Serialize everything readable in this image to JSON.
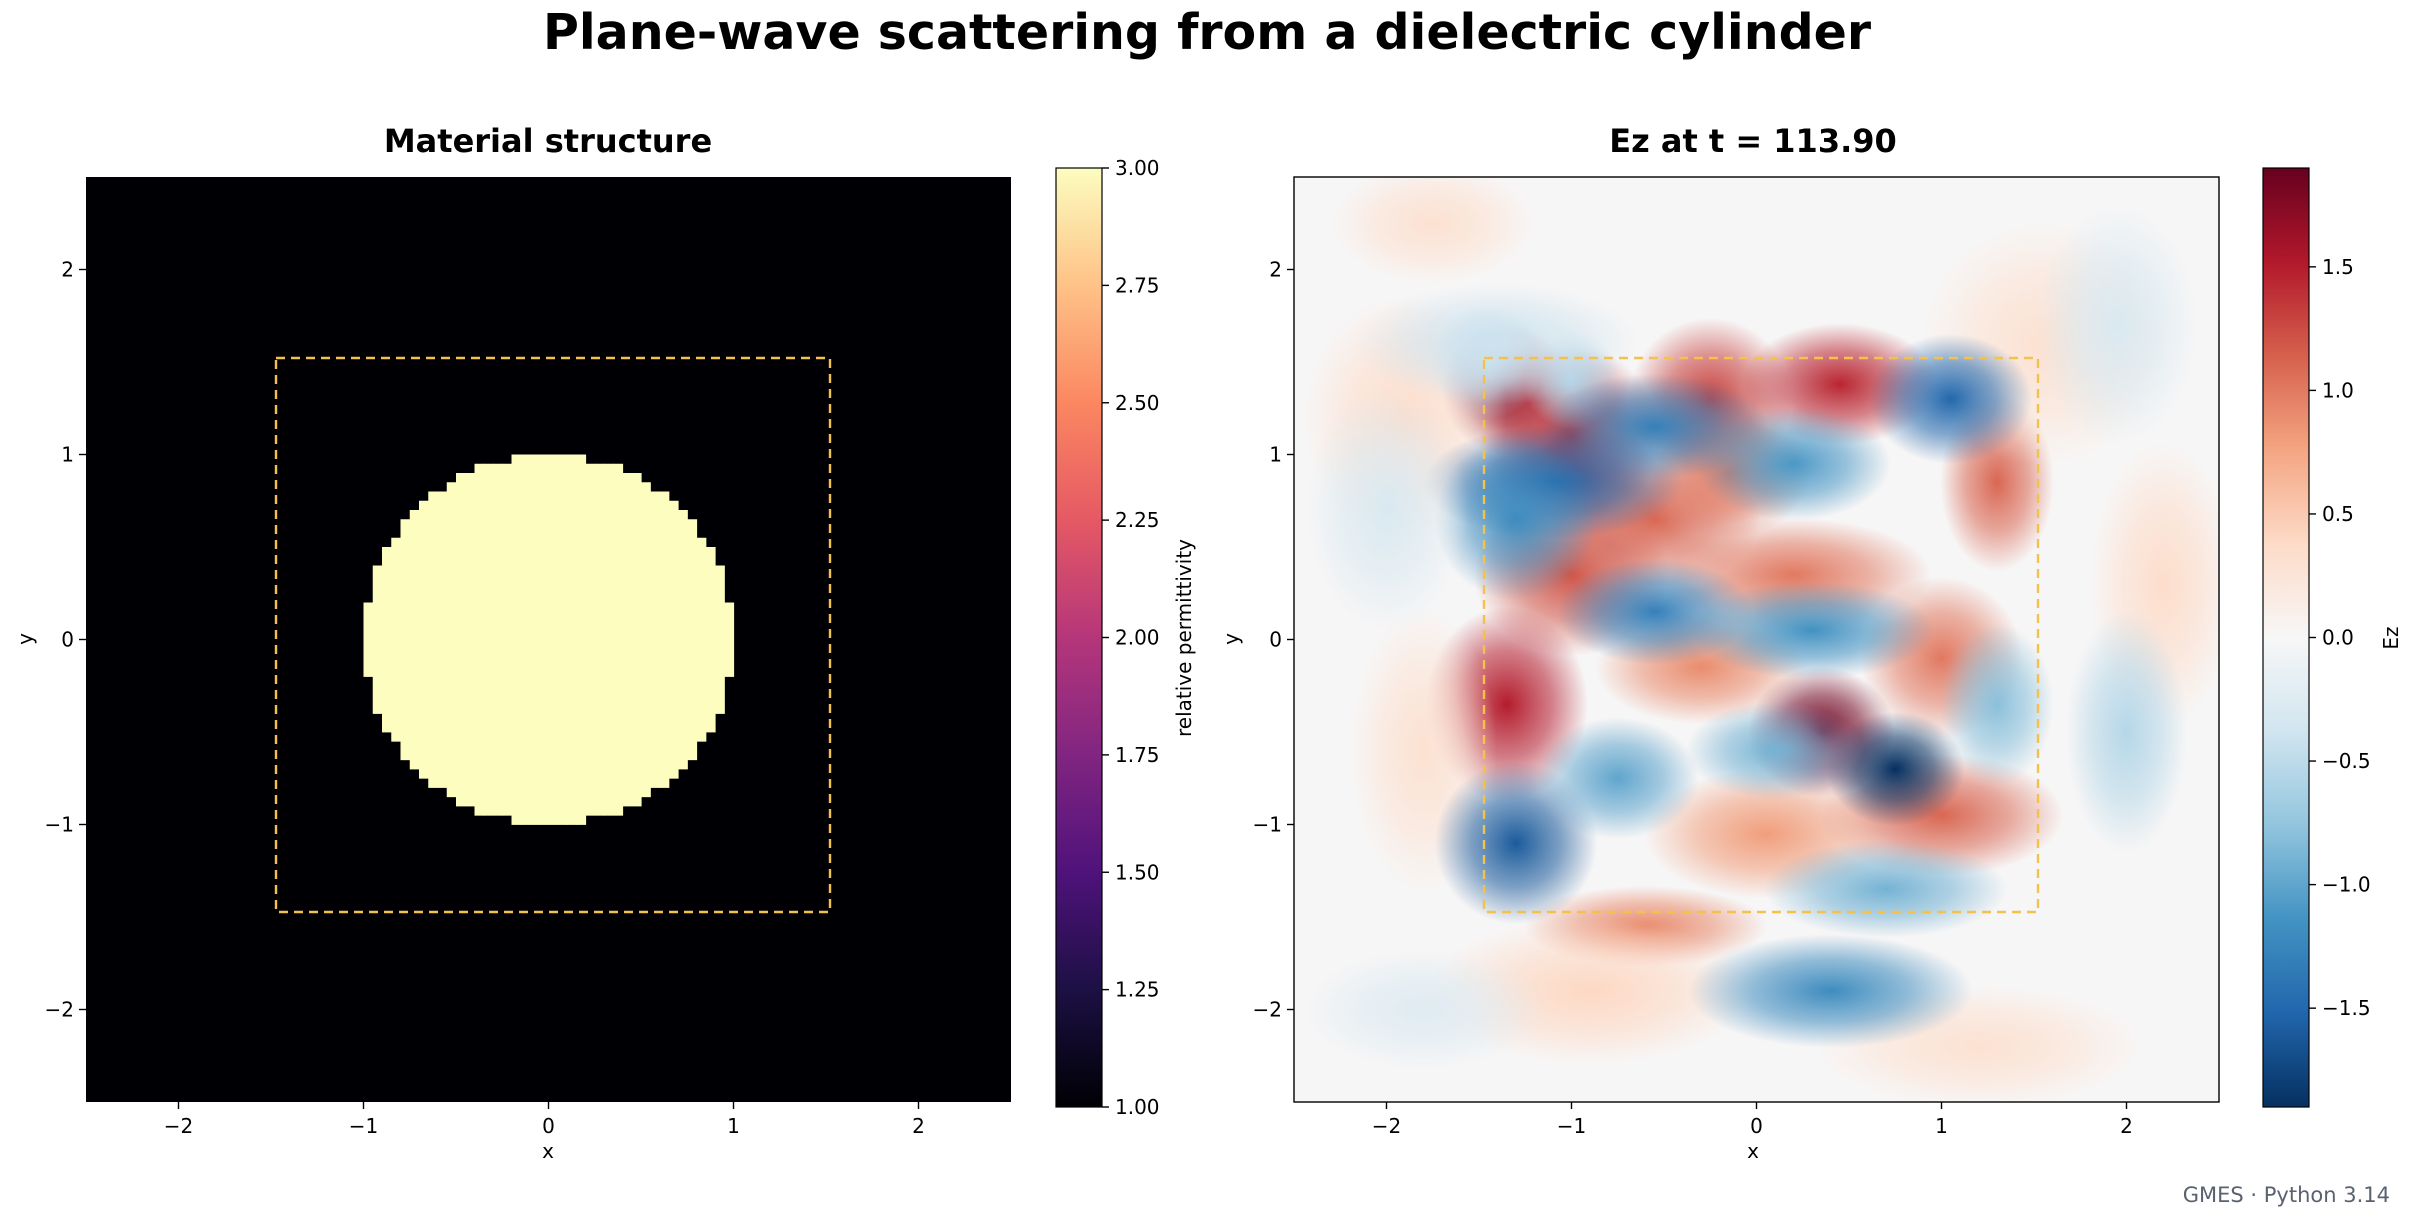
{
  "figure": {
    "title": "Plane-wave scattering from a dielectric cylinder",
    "footer": "GMES · Python 3.14"
  },
  "chart_data": [
    {
      "type": "heatmap",
      "title": "Material structure",
      "xlabel": "x",
      "ylabel": "y",
      "xlim": [
        -2.5,
        2.5
      ],
      "ylim": [
        -2.5,
        2.5
      ],
      "xticks": [
        -2,
        -1,
        0,
        1,
        2
      ],
      "yticks": [
        -2,
        -1,
        0,
        1,
        2
      ],
      "x_tick_labels": [
        "−2",
        "−1",
        "0",
        "1",
        "2"
      ],
      "y_tick_labels": [
        "−2",
        "−1",
        "0",
        "1",
        "2"
      ],
      "colormap": "magma",
      "background_value": 1.0,
      "cylinder": {
        "center": [
          0,
          0
        ],
        "radius": 1.0,
        "value": 3.0,
        "pixelated": true
      },
      "dashed_box": {
        "x": [
          -1.5,
          1.5
        ],
        "y": [
          -1.5,
          1.5
        ],
        "color": "#f2c14e"
      },
      "colorbar": {
        "label": "relative permittivity",
        "range": [
          1.0,
          3.0
        ],
        "ticks": [
          1.0,
          1.25,
          1.5,
          1.75,
          2.0,
          2.25,
          2.5,
          2.75,
          3.0
        ],
        "tick_labels": [
          "1.00",
          "1.25",
          "1.50",
          "1.75",
          "2.00",
          "2.25",
          "2.50",
          "2.75",
          "3.00"
        ]
      },
      "grid": false
    },
    {
      "type": "heatmap",
      "title": "Ez at t = 113.90",
      "xlabel": "x",
      "ylabel": "y",
      "xlim": [
        -2.5,
        2.5
      ],
      "ylim": [
        -2.5,
        2.5
      ],
      "xticks": [
        -2,
        -1,
        0,
        1,
        2
      ],
      "yticks": [
        -2,
        -1,
        0,
        1,
        2
      ],
      "x_tick_labels": [
        "−2",
        "−1",
        "0",
        "1",
        "2"
      ],
      "y_tick_labels": [
        "−2",
        "−1",
        "0",
        "1",
        "2"
      ],
      "colormap": "RdBu_r",
      "field_blobs": [
        {
          "x": -1.35,
          "y": 1.35,
          "sx": 0.16,
          "sy": 0.16,
          "a": 1.7
        },
        {
          "x": -1.0,
          "y": 1.1,
          "sx": 0.22,
          "sy": 0.22,
          "a": 1.4
        },
        {
          "x": -0.25,
          "y": 1.3,
          "sx": 0.2,
          "sy": 0.2,
          "a": 1.3
        },
        {
          "x": 0.45,
          "y": 1.38,
          "sx": 0.24,
          "sy": 0.15,
          "a": 1.45
        },
        {
          "x": -0.55,
          "y": 0.65,
          "sx": 0.26,
          "sy": 0.17,
          "a": 1.1
        },
        {
          "x": -0.15,
          "y": 0.9,
          "sx": 0.2,
          "sy": 0.16,
          "a": 1.0
        },
        {
          "x": -1.0,
          "y": 0.35,
          "sx": 0.24,
          "sy": 0.2,
          "a": 1.2
        },
        {
          "x": -1.35,
          "y": -0.35,
          "sx": 0.2,
          "sy": 0.24,
          "a": 1.5
        },
        {
          "x": 0.2,
          "y": 0.35,
          "sx": 0.34,
          "sy": 0.14,
          "a": 1.0
        },
        {
          "x": 0.35,
          "y": -0.5,
          "sx": 0.18,
          "sy": 0.16,
          "a": 1.85
        },
        {
          "x": -0.3,
          "y": -0.15,
          "sx": 0.26,
          "sy": 0.14,
          "a": 0.9
        },
        {
          "x": 1.0,
          "y": -0.1,
          "sx": 0.2,
          "sy": 0.2,
          "a": 1.0
        },
        {
          "x": 1.3,
          "y": 0.85,
          "sx": 0.14,
          "sy": 0.22,
          "a": 1.1
        },
        {
          "x": 1.0,
          "y": -0.95,
          "sx": 0.3,
          "sy": 0.15,
          "a": 1.1
        },
        {
          "x": 0.05,
          "y": -1.05,
          "sx": 0.3,
          "sy": 0.16,
          "a": 0.8
        },
        {
          "x": -0.6,
          "y": -1.55,
          "sx": 0.3,
          "sy": 0.1,
          "a": 0.9
        },
        {
          "x": -1.9,
          "y": 1.2,
          "sx": 0.25,
          "sy": 0.3,
          "a": 0.35
        },
        {
          "x": -0.9,
          "y": -1.9,
          "sx": 0.4,
          "sy": 0.18,
          "a": 0.4
        },
        {
          "x": 1.55,
          "y": 1.6,
          "sx": 0.3,
          "sy": 0.3,
          "a": 0.3
        },
        {
          "x": 2.2,
          "y": 0.3,
          "sx": 0.18,
          "sy": 0.35,
          "a": 0.35
        },
        {
          "x": 1.2,
          "y": -2.2,
          "sx": 0.4,
          "sy": 0.15,
          "a": 0.3
        },
        {
          "x": -1.75,
          "y": 2.25,
          "sx": 0.25,
          "sy": 0.15,
          "a": 0.3
        },
        {
          "x": -1.8,
          "y": -0.6,
          "sx": 0.18,
          "sy": 0.35,
          "a": 0.3
        },
        {
          "x": -1.0,
          "y": 1.4,
          "sx": 0.12,
          "sy": 0.12,
          "a": -0.6
        },
        {
          "x": -1.1,
          "y": 0.85,
          "sx": 0.32,
          "sy": 0.14,
          "a": -1.55
        },
        {
          "x": -0.55,
          "y": 1.15,
          "sx": 0.28,
          "sy": 0.13,
          "a": -1.3
        },
        {
          "x": -1.3,
          "y": 0.65,
          "sx": 0.2,
          "sy": 0.2,
          "a": -1.2
        },
        {
          "x": 1.05,
          "y": 1.3,
          "sx": 0.2,
          "sy": 0.16,
          "a": -1.5
        },
        {
          "x": 0.2,
          "y": 0.95,
          "sx": 0.24,
          "sy": 0.14,
          "a": -1.1
        },
        {
          "x": -0.55,
          "y": 0.15,
          "sx": 0.24,
          "sy": 0.13,
          "a": -1.3
        },
        {
          "x": 0.3,
          "y": 0.05,
          "sx": 0.3,
          "sy": 0.12,
          "a": -1.15
        },
        {
          "x": 0.75,
          "y": -0.7,
          "sx": 0.17,
          "sy": 0.14,
          "a": -1.95
        },
        {
          "x": -1.3,
          "y": -1.1,
          "sx": 0.2,
          "sy": 0.2,
          "a": -1.6
        },
        {
          "x": -0.75,
          "y": -0.75,
          "sx": 0.2,
          "sy": 0.15,
          "a": -1.0
        },
        {
          "x": 0.1,
          "y": -0.6,
          "sx": 0.22,
          "sy": 0.12,
          "a": -0.9
        },
        {
          "x": 1.3,
          "y": -0.35,
          "sx": 0.14,
          "sy": 0.2,
          "a": -0.8
        },
        {
          "x": 0.7,
          "y": -1.35,
          "sx": 0.3,
          "sy": 0.12,
          "a": -0.9
        },
        {
          "x": -1.45,
          "y": 1.5,
          "sx": 0.14,
          "sy": 0.14,
          "a": -0.5
        },
        {
          "x": 0.4,
          "y": -1.9,
          "sx": 0.35,
          "sy": 0.14,
          "a": -1.2
        },
        {
          "x": -1.4,
          "y": 1.6,
          "sx": 0.35,
          "sy": 0.15,
          "a": -0.4
        },
        {
          "x": 2.0,
          "y": -0.5,
          "sx": 0.15,
          "sy": 0.3,
          "a": -0.55
        },
        {
          "x": 1.95,
          "y": 1.7,
          "sx": 0.2,
          "sy": 0.3,
          "a": -0.3
        },
        {
          "x": -2.0,
          "y": 0.7,
          "sx": 0.2,
          "sy": 0.3,
          "a": -0.3
        },
        {
          "x": -1.8,
          "y": -2.0,
          "sx": 0.3,
          "sy": 0.15,
          "a": -0.25
        }
      ],
      "dashed_box": {
        "x": [
          -1.5,
          1.5
        ],
        "y": [
          -1.5,
          1.5
        ],
        "color": "#f2c14e"
      },
      "colorbar": {
        "label": "Ez",
        "range": [
          -1.9,
          1.9
        ],
        "ticks": [
          -1.5,
          -1.0,
          -0.5,
          0.0,
          0.5,
          1.0,
          1.5
        ],
        "tick_labels": [
          "−1.5",
          "−1.0",
          "−0.5",
          "0.0",
          "0.5",
          "1.0",
          "1.5"
        ]
      },
      "grid": false
    }
  ]
}
